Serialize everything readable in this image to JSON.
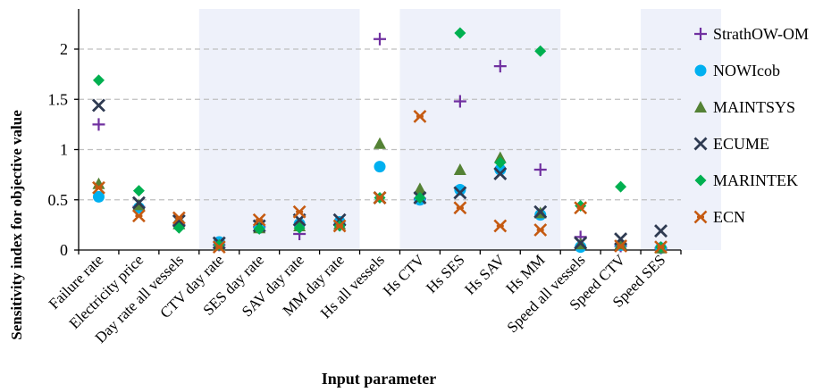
{
  "chart_data": {
    "type": "scatter",
    "xlabel": "Input parameter",
    "ylabel": "Sensitivity index for objective value",
    "ylim": [
      0,
      2.4
    ],
    "yticks": [
      0,
      0.5,
      1,
      1.5,
      2
    ],
    "ytick_labels": [
      "0",
      "0.5",
      "1",
      "1.5",
      "2"
    ],
    "grid": "horizontal dashed at y ticks",
    "legend_position": "right",
    "shaded_groups": [
      [
        3,
        6
      ],
      [
        8,
        11
      ],
      [
        14,
        15
      ]
    ],
    "categories": [
      "Failure rate",
      "Electricity price",
      "Day rate all vessels",
      "CTV day rate",
      "SES day rate",
      "SAV day rate",
      "MM day rate",
      "Hs all vessels",
      "Hs CTV",
      "Hs SES",
      "Hs SAV",
      "Hs MM",
      "Speed all vessels",
      "Speed CTV",
      "Speed SES"
    ],
    "series": [
      {
        "name": "StrathOW-OM",
        "marker": "plus",
        "color": "#7030A0",
        "values": [
          1.25,
          0.43,
          0.25,
          0.05,
          0.23,
          0.16,
          0.25,
          2.1,
          0.51,
          1.48,
          1.83,
          0.8,
          0.13,
          0.04,
          0.02
        ]
      },
      {
        "name": "NOWIcob",
        "marker": "circle",
        "color": "#00B0F0",
        "values": [
          0.53,
          0.42,
          0.26,
          0.08,
          0.22,
          0.26,
          0.28,
          0.83,
          0.5,
          0.6,
          0.8,
          0.35,
          0.03,
          0.05,
          0.02
        ]
      },
      {
        "name": "MAINTSYS",
        "marker": "triangle",
        "color": "#548235",
        "values": [
          0.66,
          0.45,
          0.26,
          0.05,
          0.22,
          0.24,
          0.26,
          1.06,
          0.61,
          0.8,
          0.92,
          0.37,
          0.06,
          0.06,
          0.02
        ]
      },
      {
        "name": "ECUME",
        "marker": "x",
        "color": "#2F3B52",
        "values": [
          1.44,
          0.47,
          0.29,
          0.07,
          0.24,
          0.3,
          0.3,
          0.52,
          0.52,
          0.57,
          0.76,
          0.38,
          0.07,
          0.11,
          0.19
        ]
      },
      {
        "name": "MARINTEK",
        "marker": "diamond",
        "color": "#00B050",
        "values": [
          1.69,
          0.59,
          0.22,
          0.05,
          0.21,
          0.22,
          0.24,
          0.52,
          0.52,
          2.16,
          0.87,
          1.98,
          0.44,
          0.63,
          0.03
        ]
      },
      {
        "name": "ECN",
        "marker": "asterisk",
        "color": "#C55A11",
        "values": [
          0.62,
          0.34,
          0.32,
          0.03,
          0.3,
          0.38,
          0.24,
          0.52,
          1.33,
          0.42,
          0.24,
          0.2,
          0.42,
          0.04,
          0.03
        ]
      }
    ]
  }
}
